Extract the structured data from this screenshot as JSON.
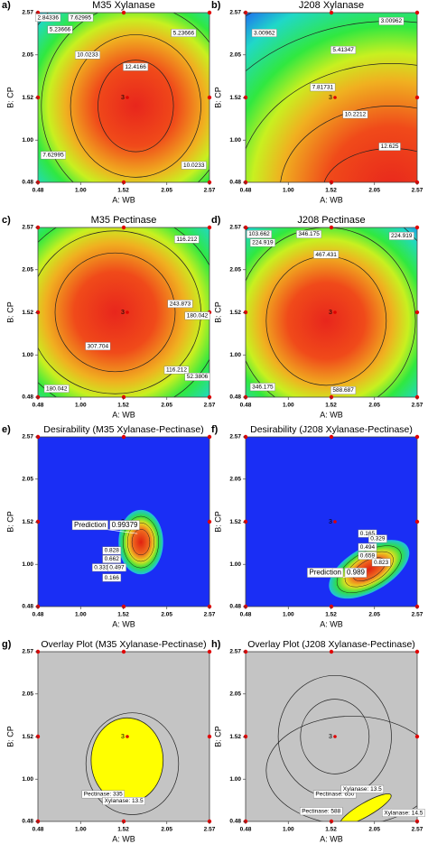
{
  "chart_data": [
    {
      "type": "contour",
      "panel": "a)",
      "title": "M35 Xylanase",
      "x_label": "A: WB",
      "y_label": "B: CP",
      "xlim": [
        0.48,
        2.57
      ],
      "ylim": [
        0.48,
        2.57
      ],
      "xticks": [
        0.48,
        {
          "value": 1,
          "label": "1.00"
        },
        1.52,
        2.05,
        2.57
      ],
      "yticks": [
        0.48,
        {
          "value": 1,
          "label": "1.00"
        },
        1.52,
        2.05,
        2.57
      ],
      "center_label": "3",
      "contour_labels": [
        2.84336,
        7.62995,
        5.23666,
        5.23666,
        10.0233,
        12.4166,
        7.62995,
        10.0233
      ]
    },
    {
      "type": "contour",
      "panel": "b)",
      "title": "J208 Xylanase",
      "x_label": "A: WB",
      "y_label": "B: CP",
      "xlim": [
        0.48,
        2.57
      ],
      "ylim": [
        0.48,
        2.57
      ],
      "xticks": [
        0.48,
        {
          "value": 1,
          "label": "1.00"
        },
        1.52,
        2.05,
        2.57
      ],
      "yticks": [
        0.48,
        {
          "value": 1,
          "label": "1.00"
        },
        1.52,
        2.05,
        2.57
      ],
      "center_label": "3",
      "contour_labels": [
        3.00962,
        3.00962,
        5.41347,
        7.81731,
        10.2212,
        12.625
      ]
    },
    {
      "type": "contour",
      "panel": "c)",
      "title": "M35 Pectinase",
      "x_label": "A: WB",
      "y_label": "B: CP",
      "xlim": [
        0.48,
        2.57
      ],
      "ylim": [
        0.48,
        2.57
      ],
      "xticks": [
        0.48,
        {
          "value": 1,
          "label": "1.00"
        },
        1.52,
        2.05,
        2.57
      ],
      "yticks": [
        0.48,
        {
          "value": 1,
          "label": "1.00"
        },
        1.52,
        2.05,
        2.57
      ],
      "center_label": "3",
      "contour_labels": [
        116.212,
        243.873,
        180.042,
        307.704,
        116.212,
        52.3806,
        180.042
      ]
    },
    {
      "type": "contour",
      "panel": "d)",
      "title": "J208 Pectinase",
      "x_label": "A: WB",
      "y_label": "B: CP",
      "xlim": [
        0.48,
        2.57
      ],
      "ylim": [
        0.48,
        2.57
      ],
      "xticks": [
        0.48,
        {
          "value": 1,
          "label": "1.00"
        },
        1.52,
        2.05,
        2.57
      ],
      "yticks": [
        0.48,
        {
          "value": 1,
          "label": "1.00"
        },
        1.52,
        2.05,
        2.57
      ],
      "center_label": "3",
      "contour_labels": [
        103.662,
        224.919,
        346.175,
        224.919,
        467.431,
        346.175,
        588.687
      ]
    },
    {
      "type": "desirability",
      "panel": "e)",
      "title": "Desirability (M35 Xylanase-Pectinase)",
      "x_label": "A: WB",
      "y_label": "B: CP",
      "xlim": [
        0.48,
        2.57
      ],
      "ylim": [
        0.48,
        2.57
      ],
      "xticks": [
        0.48,
        {
          "value": 1,
          "label": "1.00"
        },
        1.52,
        2.05,
        2.57
      ],
      "yticks": [
        0.48,
        {
          "value": 1,
          "label": "1.00"
        },
        1.52,
        2.05,
        2.57
      ],
      "center_label": "3",
      "prediction_label": "Prediction",
      "prediction": 0.99379,
      "contour_labels": [
        0.828,
        0.662,
        0.331,
        0.497,
        0.166
      ]
    },
    {
      "type": "desirability",
      "panel": "f)",
      "title": "Desirability (J208 Xylanase-Pectinase)",
      "x_label": "A: WB",
      "y_label": "B: CP",
      "xlim": [
        0.48,
        2.57
      ],
      "ylim": [
        0.48,
        2.57
      ],
      "xticks": [
        0.48,
        {
          "value": 1,
          "label": "1.00"
        },
        1.52,
        2.05,
        2.57
      ],
      "yticks": [
        0.48,
        {
          "value": 1,
          "label": "1.00"
        },
        1.52,
        2.05,
        2.57
      ],
      "center_label": "3",
      "prediction_label": "Prediction",
      "prediction": 0.989,
      "contour_labels": [
        0.165,
        0.329,
        0.494,
        0.659,
        0.823
      ]
    },
    {
      "type": "overlay",
      "panel": "g)",
      "title": "Overlay Plot (M35 Xylanase-Pectinase)",
      "x_label": "A: WB",
      "y_label": "B: CP",
      "xlim": [
        0.48,
        2.57
      ],
      "ylim": [
        0.48,
        2.57
      ],
      "xticks": [
        0.48,
        {
          "value": 1,
          "label": "1.00"
        },
        1.52,
        2.05,
        2.57
      ],
      "yticks": [
        0.48,
        {
          "value": 1,
          "label": "1.00"
        },
        1.52,
        2.05,
        2.57
      ],
      "center_label": "3",
      "contour_labels": [
        "Pectinase: 335",
        "Xylanase: 13.5"
      ]
    },
    {
      "type": "overlay",
      "panel": "h)",
      "title": "Overlay Plot (J208 Xylanase-Pectinase)",
      "x_label": "A: WB",
      "y_label": "B: CP",
      "xlim": [
        0.48,
        2.57
      ],
      "ylim": [
        0.48,
        2.57
      ],
      "xticks": [
        0.48,
        {
          "value": 1,
          "label": "1.00"
        },
        1.52,
        2.05,
        2.57
      ],
      "yticks": [
        0.48,
        {
          "value": 1,
          "label": "1.00"
        },
        1.52,
        2.05,
        2.57
      ],
      "center_label": "3",
      "contour_labels": [
        "Pectinase: 650",
        "Xylanase: 13.5",
        "Pectinase: 588",
        "Xylanase: 14.5"
      ]
    }
  ]
}
